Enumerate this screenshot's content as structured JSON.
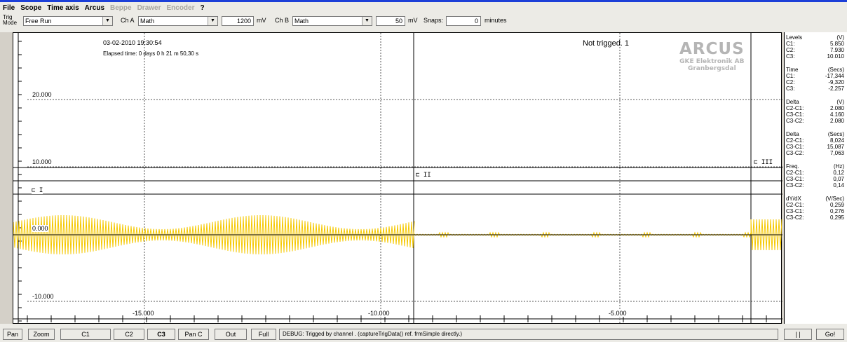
{
  "menu": [
    {
      "label": "File",
      "enabled": true
    },
    {
      "label": "Scope",
      "enabled": true
    },
    {
      "label": "Time axis",
      "enabled": true
    },
    {
      "label": "Arcus",
      "enabled": true
    },
    {
      "label": "Beppe",
      "enabled": false
    },
    {
      "label": "Drawer",
      "enabled": false
    },
    {
      "label": "Encoder",
      "enabled": false
    },
    {
      "label": "?",
      "enabled": true
    }
  ],
  "toolbar": {
    "trig_label_1": "Trig",
    "trig_label_2": "Mode",
    "trig_mode_value": "Free Run",
    "ch_a_label": "Ch A",
    "ch_a_value": "Math",
    "ch_a_volt": "1200",
    "ch_a_unit": "mV",
    "ch_b_label": "Ch B",
    "ch_b_value": "Math",
    "ch_b_volt": "50",
    "ch_b_unit": "mV",
    "snaps_label": "Snaps:",
    "snaps_value": "0",
    "snaps_unit": "minutes"
  },
  "plot": {
    "datetime": "03-02-2010  19:30:54",
    "elapsed": "Elapsed time: 0 days 0 h 21 m 50,30 s",
    "status": "Not trigged. 1",
    "logo_title": "ARCUS",
    "logo_line1": "GKE Elektronik AB",
    "logo_line2": "Granbergsdal",
    "y_labels": [
      "20.000",
      "10.000",
      "0.000",
      "-10.000"
    ],
    "x_labels": [
      "-15.000",
      "-10.000",
      "-5.000"
    ],
    "cursor_labels": [
      "⊏ I",
      "⊏ II",
      "⊏ III"
    ],
    "trace_color": "#f5c800"
  },
  "side": {
    "levels": {
      "title": "Levels",
      "unit": "(V)",
      "rows": [
        [
          "C1:",
          "5.850"
        ],
        [
          "C2:",
          "7.930"
        ],
        [
          "C3:",
          "10.010"
        ]
      ]
    },
    "time": {
      "title": "Time",
      "unit": "(Secs)",
      "rows": [
        [
          "C1:",
          "-17,344"
        ],
        [
          "C2:",
          "-9,320"
        ],
        [
          "C3:",
          "-2,257"
        ]
      ]
    },
    "delta_v": {
      "title": "Delta",
      "unit": "(V)",
      "rows": [
        [
          "C2-C1:",
          "2.080"
        ],
        [
          "C3-C1:",
          "4.160"
        ],
        [
          "C3-C2:",
          "2.080"
        ]
      ]
    },
    "delta_t": {
      "title": "Delta",
      "unit": "(Secs)",
      "rows": [
        [
          "C2-C1:",
          "8,024"
        ],
        [
          "C3-C1:",
          "15,087"
        ],
        [
          "C3-C2:",
          "7,063"
        ]
      ]
    },
    "freq": {
      "title": "Freq.",
      "unit": "(Hz)",
      "rows": [
        [
          "C2-C1:",
          "0,12"
        ],
        [
          "C3-C1:",
          "0,07"
        ],
        [
          "C3-C2:",
          "0,14"
        ]
      ]
    },
    "dydx": {
      "title": "dY/dX",
      "unit": "(V/Sec)",
      "rows": [
        [
          "C2-C1:",
          "0,259"
        ],
        [
          "C3-C1:",
          "0,276"
        ],
        [
          "C3-C2:",
          "0,295"
        ]
      ]
    }
  },
  "bottom": {
    "buttons": [
      "Pan",
      "Zoom",
      "C1",
      "C2",
      "C3",
      "Pan C",
      "Out",
      "Full"
    ],
    "debug": "DEBUG: Trigged by channel . (captureTrigData() ref. frmSimple directly.)",
    "pause": "| |",
    "go": "Go!"
  }
}
